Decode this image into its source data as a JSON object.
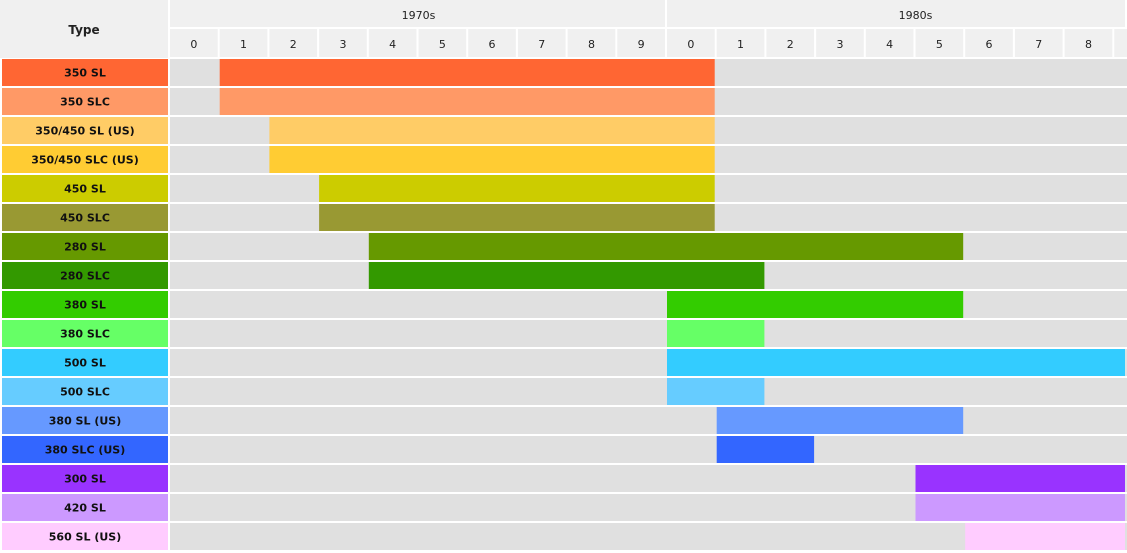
{
  "chart_data": {
    "type": "timeline",
    "row_header": "Type",
    "decades": [
      {
        "label": "1970s",
        "start": 1970,
        "years": 10
      },
      {
        "label": "1980s",
        "start": 1980,
        "years": 10
      }
    ],
    "year_ticks": [
      {
        "year": 1970,
        "label": "0"
      },
      {
        "year": 1971,
        "label": "1"
      },
      {
        "year": 1972,
        "label": "2"
      },
      {
        "year": 1973,
        "label": "3"
      },
      {
        "year": 1974,
        "label": "4"
      },
      {
        "year": 1975,
        "label": "5"
      },
      {
        "year": 1976,
        "label": "6"
      },
      {
        "year": 1977,
        "label": "7"
      },
      {
        "year": 1978,
        "label": "8"
      },
      {
        "year": 1979,
        "label": "9"
      },
      {
        "year": 1980,
        "label": "0"
      },
      {
        "year": 1981,
        "label": "1"
      },
      {
        "year": 1982,
        "label": "2"
      },
      {
        "year": 1983,
        "label": "3"
      },
      {
        "year": 1984,
        "label": "4"
      },
      {
        "year": 1985,
        "label": "5"
      },
      {
        "year": 1986,
        "label": "6"
      },
      {
        "year": 1987,
        "label": "7"
      },
      {
        "year": 1988,
        "label": "8"
      }
    ],
    "x_range": [
      1970,
      1989.7
    ],
    "rows": [
      {
        "label": "350 SL",
        "start": 1971,
        "end": 1981,
        "color": "#ff6633"
      },
      {
        "label": "350 SLC",
        "start": 1971,
        "end": 1981,
        "color": "#ff9966"
      },
      {
        "label": "350/450 SL (US)",
        "start": 1972,
        "end": 1981,
        "color": "#ffcc66"
      },
      {
        "label": "350/450 SLC (US)",
        "start": 1972,
        "end": 1981,
        "color": "#ffcc33"
      },
      {
        "label": "450 SL",
        "start": 1973,
        "end": 1981,
        "color": "#cccc00"
      },
      {
        "label": "450 SLC",
        "start": 1973,
        "end": 1981,
        "color": "#999933"
      },
      {
        "label": "280 SL",
        "start": 1974,
        "end": 1986,
        "color": "#669900"
      },
      {
        "label": "280 SLC",
        "start": 1974,
        "end": 1982,
        "color": "#339900"
      },
      {
        "label": "380 SL",
        "start": 1980,
        "end": 1986,
        "color": "#33cc00"
      },
      {
        "label": "380 SLC",
        "start": 1980,
        "end": 1982,
        "color": "#66ff66"
      },
      {
        "label": "500 SL",
        "start": 1980,
        "end": 1989.7,
        "color": "#33ccff"
      },
      {
        "label": "500 SLC",
        "start": 1980,
        "end": 1982,
        "color": "#66ccff"
      },
      {
        "label": "380 SL (US)",
        "start": 1981,
        "end": 1986,
        "color": "#6699ff"
      },
      {
        "label": "380 SLC (US)",
        "start": 1981,
        "end": 1983,
        "color": "#3366ff"
      },
      {
        "label": "300 SL",
        "start": 1985,
        "end": 1989.7,
        "color": "#9933ff"
      },
      {
        "label": "420 SL",
        "start": 1985,
        "end": 1989.7,
        "color": "#cc99ff"
      },
      {
        "label": "560 SL (US)",
        "start": 1986,
        "end": 1989.7,
        "color": "#ffccff"
      }
    ],
    "colors": {
      "track": "#e0e0e0",
      "header_bg": "#f0f0f0",
      "grid": "#ffffff"
    }
  }
}
